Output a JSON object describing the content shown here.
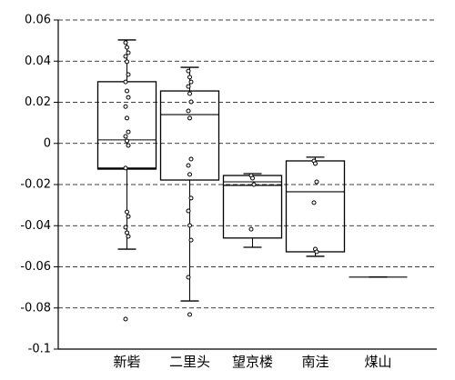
{
  "chart_data": {
    "type": "box",
    "ylim": [
      -0.1,
      0.06
    ],
    "yticks": [
      -0.1,
      -0.08,
      -0.06,
      -0.04,
      -0.02,
      0,
      0.02,
      0.04,
      0.06
    ],
    "grid": true,
    "color": "#000000",
    "series": [
      {
        "name": "新砦",
        "whisker_low": -0.0514,
        "q1": -0.0125,
        "median": -0.012,
        "mean": 0.0017,
        "q3": 0.03,
        "whisker_high": 0.0503,
        "points": [
          0.049,
          0.0467,
          0.0441,
          0.0423,
          0.0397,
          0.0335,
          0.0299,
          0.0255,
          0.0224,
          0.0179,
          0.0123,
          0.0056,
          0.0034,
          0.0012,
          -0.001,
          -0.012,
          -0.0333,
          -0.0355,
          -0.0408,
          -0.0434,
          -0.0452,
          -0.0854
        ]
      },
      {
        "name": "二里头",
        "whisker_low": -0.0766,
        "q1": -0.0178,
        "median": 0.014,
        "q3": 0.0255,
        "whisker_high": 0.037,
        "points": [
          0.0352,
          0.0322,
          0.0299,
          0.0277,
          0.0242,
          0.0202,
          0.0158,
          0.0123,
          -0.0076,
          -0.0107,
          -0.0151,
          -0.0266,
          -0.0328,
          -0.0399,
          -0.047,
          -0.0651,
          -0.0832
        ]
      },
      {
        "name": "望京楼",
        "whisker_low": -0.0505,
        "q1": -0.046,
        "median": -0.0204,
        "mean": -0.0187,
        "q3": -0.0156,
        "whisker_high": -0.0147,
        "points": [
          -0.0156,
          -0.0169,
          -0.02,
          -0.0417
        ]
      },
      {
        "name": "南洼",
        "whisker_low": -0.0549,
        "q1": -0.0527,
        "median": -0.0235,
        "q3": -0.0085,
        "whisker_high": -0.0067,
        "points": [
          -0.0085,
          -0.0098,
          -0.0187,
          -0.0288,
          -0.0514,
          -0.0527
        ]
      },
      {
        "name": "煤山",
        "whisker_low": -0.065,
        "q1": -0.065,
        "median": -0.065,
        "q3": -0.065,
        "whisker_high": -0.065,
        "points": []
      }
    ]
  }
}
